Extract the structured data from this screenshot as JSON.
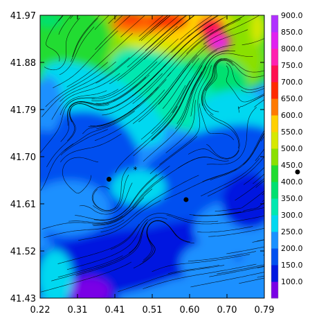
{
  "chart_data": {
    "type": "heatmap",
    "title": "",
    "xlabel": "",
    "ylabel": "",
    "xlim": [
      0.22,
      0.79
    ],
    "ylim": [
      41.43,
      41.97
    ],
    "x_ticks": [
      "0.22",
      "0.31",
      "0.41",
      "0.51",
      "0.60",
      "0.70",
      "0.79"
    ],
    "y_ticks": [
      "41.97",
      "41.88",
      "41.79",
      "41.70",
      "41.61",
      "41.52",
      "41.43"
    ],
    "colorbar": {
      "levels": [
        "100.0",
        "150.0",
        "200.0",
        "250.0",
        "300.0",
        "350.0",
        "400.0",
        "450.0",
        "500.0",
        "550.0",
        "600.0",
        "650.0",
        "700.0",
        "750.0",
        "800.0",
        "850.0",
        "900.0"
      ],
      "colors": [
        "#7a00e6",
        "#0018e0",
        "#0050f0",
        "#1a90ff",
        "#00d8f0",
        "#00e8b0",
        "#00e070",
        "#20dc30",
        "#8ae000",
        "#d6e800",
        "#ffd000",
        "#ff7a00",
        "#ff2a00",
        "#ff1050",
        "#ff20b0",
        "#e020f0",
        "#b030ff"
      ]
    },
    "markers": [
      {
        "type": "dot",
        "x": 0.395,
        "y": 41.657
      },
      {
        "type": "dot",
        "x": 0.591,
        "y": 41.618
      },
      {
        "type": "star",
        "x": 0.462,
        "y": 41.675
      }
    ],
    "legend_marker_label": "450.0",
    "grid": false
  }
}
